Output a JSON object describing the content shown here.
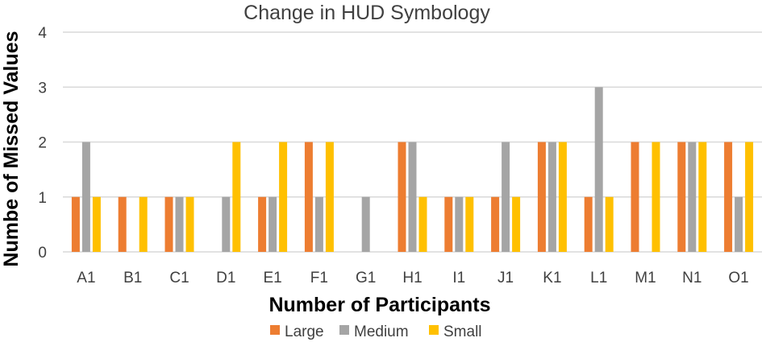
{
  "chart_data": {
    "type": "bar",
    "title": "Change in HUD Symbology",
    "xlabel": "Number of Participants",
    "ylabel": "Numbe of Missed Values",
    "ylim": [
      0,
      4
    ],
    "yticks": [
      "0",
      "1",
      "2",
      "3",
      "4"
    ],
    "grid": true,
    "legend_position": "bottom",
    "categories": [
      "A1",
      "B1",
      "C1",
      "D1",
      "E1",
      "F1",
      "G1",
      "H1",
      "I1",
      "J1",
      "K1",
      "L1",
      "M1",
      "N1",
      "O1"
    ],
    "series": [
      {
        "name": "Large",
        "color": "#ed7d31",
        "values": [
          1,
          1,
          1,
          0,
          1,
          2,
          0,
          2,
          1,
          1,
          2,
          1,
          2,
          2,
          2
        ]
      },
      {
        "name": "Medium",
        "color": "#a5a5a5",
        "values": [
          2,
          0,
          1,
          1,
          1,
          1,
          1,
          2,
          1,
          2,
          2,
          3,
          0,
          2,
          1
        ]
      },
      {
        "name": "Small",
        "color": "#ffc000",
        "values": [
          1,
          1,
          1,
          2,
          2,
          2,
          0,
          1,
          1,
          1,
          2,
          1,
          2,
          2,
          2
        ]
      }
    ]
  }
}
